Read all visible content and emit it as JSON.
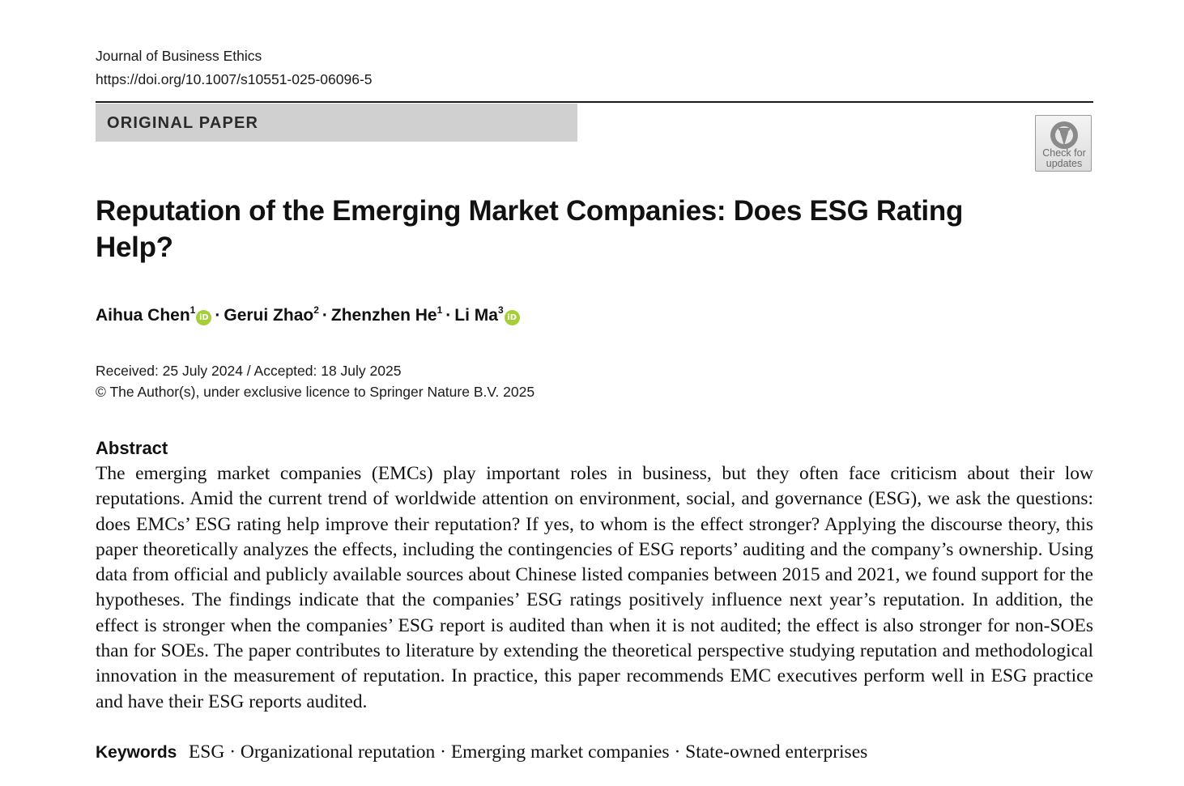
{
  "journal": {
    "name": "Journal of Business Ethics",
    "doi": "https://doi.org/10.1007/s10551-025-06096-5"
  },
  "paper_type": "ORIGINAL PAPER",
  "check_updates": {
    "line1": "Check for",
    "line2": "updates",
    "icon": "check-for-updates-icon"
  },
  "title": "Reputation of the Emerging Market Companies: Does ESG Rating Help?",
  "authors": [
    {
      "name": "Aihua Chen",
      "affiliation": "1",
      "orcid": true
    },
    {
      "name": "Gerui Zhao",
      "affiliation": "2",
      "orcid": false
    },
    {
      "name": "Zhenzhen He",
      "affiliation": "1",
      "orcid": false
    },
    {
      "name": "Li Ma",
      "affiliation": "3",
      "orcid": true
    }
  ],
  "author_separator": "·",
  "orcid_label": "iD",
  "dates": {
    "received_accepted": "Received: 25 July 2024 / Accepted: 18 July 2025",
    "copyright": "© The Author(s), under exclusive licence to Springer Nature B.V. 2025"
  },
  "abstract": {
    "heading": "Abstract",
    "text": "The emerging market companies (EMCs) play important roles in business, but they often face criticism about their low reputations. Amid the current trend of worldwide attention on environment, social, and governance (ESG), we ask the ques­tions: does EMCs’ ESG rating help improve their reputation? If yes, to whom is the effect stronger? Applying the discourse theory, this paper theoretically analyzes the effects, including the contingencies of ESG reports’ auditing and the company’s ownership. Using data from official and publicly available sources about Chinese listed companies between 2015 and 2021, we found support for the hypotheses. The findings indicate that the companies’ ESG ratings positively influence next year’s reputation. In addition, the effect is stronger when the companies’ ESG report is audited than when it is not audited; the effect is also stronger for non-SOEs than for SOEs. The paper contributes to literature by extending the theoretical perspective studying reputation and methodological innovation in the measurement of reputation. In practice, this paper recommends EMC executives perform well in ESG practice and have their ESG reports audited."
  },
  "keywords": {
    "label": "Keywords",
    "items": [
      "ESG",
      "Organizational reputation",
      "Emerging market companies",
      "State-owned enterprises"
    ],
    "separator": " · "
  },
  "colors": {
    "paper_type_bar": "#d0d0d0",
    "orcid_green": "#a6ce39",
    "rule": "#1a1a1a"
  }
}
